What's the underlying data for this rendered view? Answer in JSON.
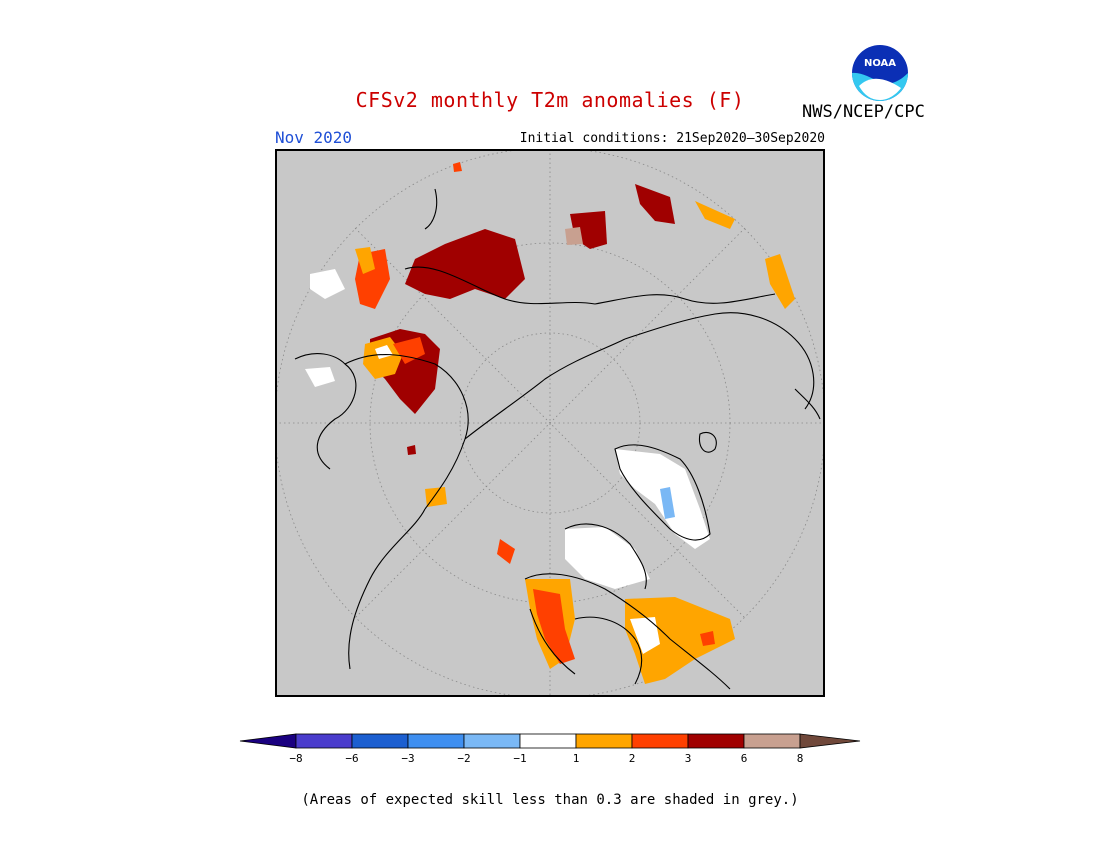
{
  "title": "CFSv2 monthly T2m anomalies (F)",
  "agency": "NWS/NCEP/CPC",
  "logo_text": "NOAA",
  "month": "Nov 2020",
  "initial_conditions": "Initial conditions: 21Sep2020–30Sep2020",
  "skill_note": "(Areas of expected skill less than 0.3 are shaded in grey.)",
  "colorbar": {
    "ticks": [
      "−8",
      "−6",
      "−3",
      "−2",
      "−1",
      "1",
      "2",
      "3",
      "6",
      "8"
    ],
    "colors": {
      "below_min": "#1a0080",
      "n8_n6": "#4a3ccc",
      "n6_n3": "#1c5fd0",
      "n3_n2": "#3f8ff0",
      "n2_n1": "#7ab8f5",
      "n1_1": "#ffffff",
      "1_2": "#ffa500",
      "2_3": "#ff4000",
      "3_6": "#a00000",
      "6_8": "#c8a090",
      "above_max": "#70483a"
    }
  },
  "map": {
    "projection": "north-polar-stereographic",
    "background": "#c8c8c8",
    "skill_mask_color": "#c8c8c8"
  }
}
